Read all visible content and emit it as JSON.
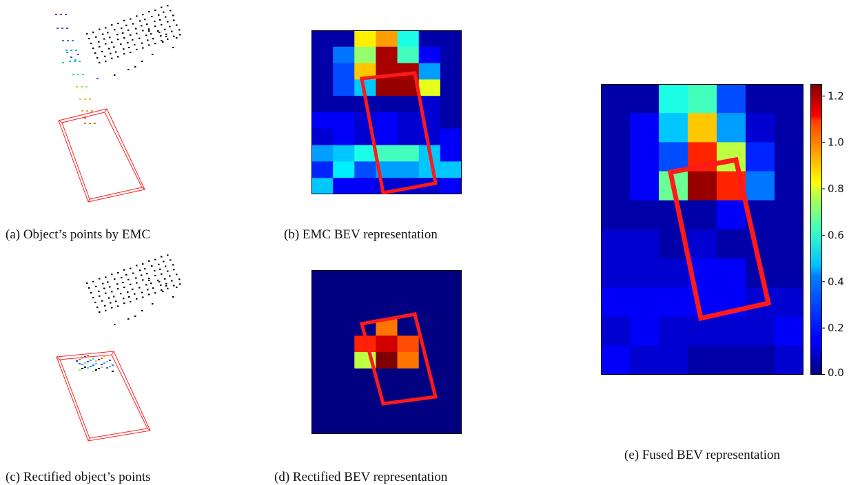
{
  "captions": {
    "a": "(a) Object’s points by EMC",
    "b": "(b) EMC BEV representation",
    "c": "(c) Rectified object’s points",
    "d": "(d) Rectified BEV representation",
    "e": "(e) Fused BEV representation"
  },
  "colorbar": {
    "colormap": "jet",
    "range": [
      0.0,
      1.25
    ],
    "ticks": [
      "0.0",
      "0.2",
      "0.4",
      "0.6",
      "0.8",
      "1.0",
      "1.2"
    ]
  },
  "box_color": "#ff1a1a",
  "chart_data": [
    {
      "type": "heatmap",
      "panel": "b",
      "rows": 10,
      "cols": 7,
      "values": [
        [
          0.05,
          0.05,
          0.8,
          0.9,
          0.5,
          0.05,
          0.05
        ],
        [
          0.05,
          0.3,
          0.65,
          1.2,
          0.55,
          0.15,
          0.05
        ],
        [
          0.05,
          0.25,
          0.85,
          1.2,
          1.2,
          0.35,
          0.05
        ],
        [
          0.05,
          0.25,
          0.4,
          1.22,
          1.22,
          0.75,
          0.05
        ],
        [
          0.05,
          0.05,
          0.05,
          0.05,
          0.05,
          0.1,
          0.05
        ],
        [
          0.15,
          0.15,
          0.1,
          0.15,
          0.1,
          0.1,
          0.05
        ],
        [
          0.1,
          0.15,
          0.1,
          0.15,
          0.1,
          0.1,
          0.15
        ],
        [
          0.35,
          0.4,
          0.5,
          0.55,
          0.55,
          0.4,
          0.15
        ],
        [
          0.2,
          0.45,
          0.25,
          0.35,
          0.35,
          0.4,
          0.4
        ],
        [
          0.4,
          0.15,
          0.15,
          0.1,
          0.1,
          0.1,
          0.15
        ]
      ]
    },
    {
      "type": "heatmap",
      "panel": "d",
      "rows": 10,
      "cols": 7,
      "values": [
        [
          0,
          0,
          0,
          0,
          0,
          0,
          0
        ],
        [
          0,
          0,
          0,
          0,
          0,
          0,
          0
        ],
        [
          0,
          0,
          0,
          0,
          0,
          0,
          0
        ],
        [
          0,
          0,
          0,
          0.95,
          0,
          0,
          0
        ],
        [
          0,
          0,
          1.05,
          1.15,
          1.0,
          0,
          0
        ],
        [
          0,
          0,
          0.7,
          1.25,
          0.95,
          0,
          0
        ],
        [
          0,
          0,
          0,
          0,
          0,
          0,
          0
        ],
        [
          0,
          0,
          0,
          0,
          0,
          0,
          0
        ],
        [
          0,
          0,
          0,
          0,
          0,
          0,
          0
        ],
        [
          0,
          0,
          0,
          0,
          0,
          0,
          0
        ]
      ]
    },
    {
      "type": "heatmap",
      "panel": "e",
      "rows": 10,
      "cols": 7,
      "values": [
        [
          0.05,
          0.05,
          0.5,
          0.55,
          0.25,
          0.05,
          0.05
        ],
        [
          0.05,
          0.15,
          0.4,
          0.85,
          0.35,
          0.1,
          0.05
        ],
        [
          0.05,
          0.15,
          0.25,
          1.05,
          0.7,
          0.2,
          0.05
        ],
        [
          0.05,
          0.15,
          0.6,
          1.22,
          1.05,
          0.3,
          0.05
        ],
        [
          0.05,
          0.05,
          0.05,
          0.05,
          0.15,
          0.05,
          0.05
        ],
        [
          0.1,
          0.1,
          0.05,
          0.1,
          0.05,
          0.05,
          0.05
        ],
        [
          0.1,
          0.1,
          0.1,
          0.15,
          0.15,
          0.05,
          0.05
        ],
        [
          0.15,
          0.15,
          0.15,
          0.15,
          0.15,
          0.1,
          0.1
        ],
        [
          0.1,
          0.15,
          0.1,
          0.1,
          0.1,
          0.1,
          0.15
        ],
        [
          0.15,
          0.1,
          0.1,
          0.05,
          0.05,
          0.05,
          0.1
        ]
      ]
    }
  ]
}
